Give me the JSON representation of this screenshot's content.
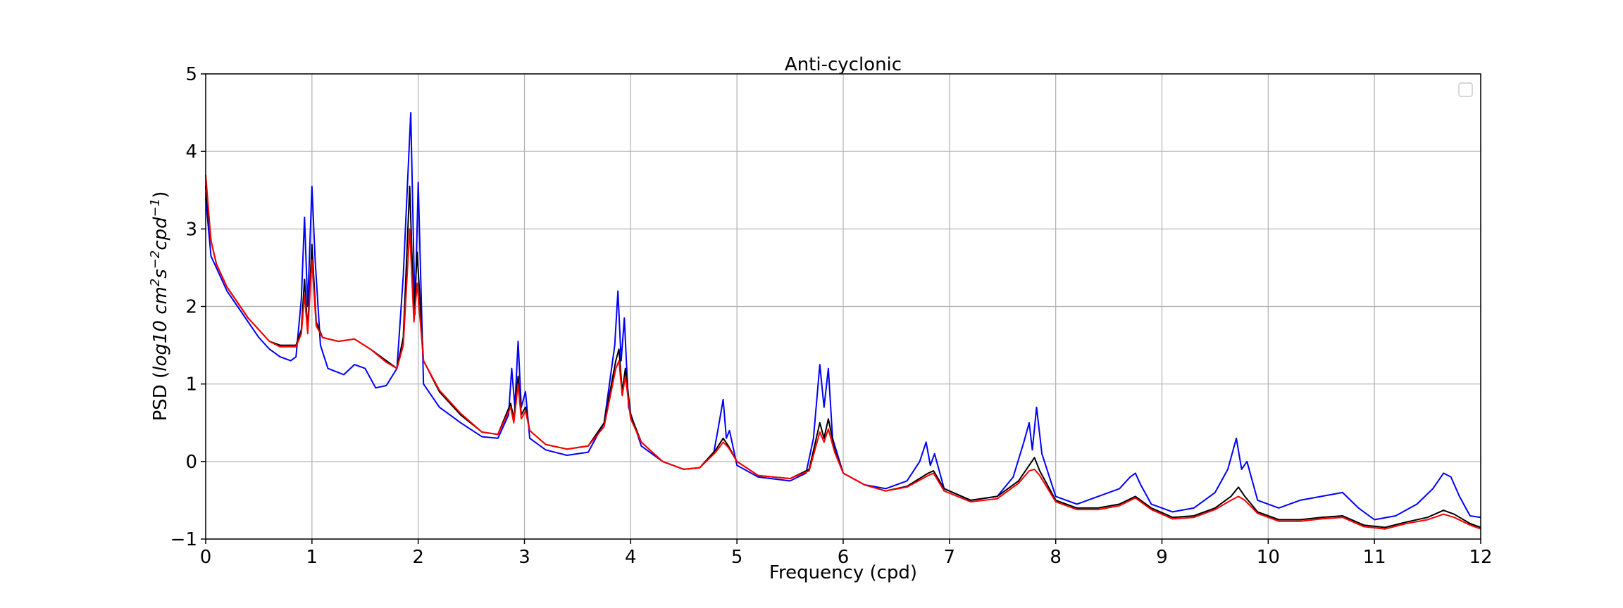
{
  "chart_data": {
    "type": "line",
    "title": "Anti-cyclonic",
    "xlabel": "Frequency (cpd)",
    "ylabel": "PSD (log10 cm^2 s^-2 cpd^-1)",
    "xlim": [
      0,
      12
    ],
    "ylim": [
      -1,
      5
    ],
    "xticks": [
      "0",
      "1",
      "2",
      "3",
      "4",
      "5",
      "6",
      "7",
      "8",
      "9",
      "10",
      "11",
      "12"
    ],
    "yticks": [
      "−1",
      "0",
      "1",
      "2",
      "3",
      "4",
      "5"
    ],
    "grid": true,
    "legend": {
      "placement": "top-right",
      "entries": []
    },
    "series": [
      {
        "color": "#0000ff",
        "points": [
          [
            0.0,
            3.4
          ],
          [
            0.05,
            2.65
          ],
          [
            0.1,
            2.5
          ],
          [
            0.2,
            2.2
          ],
          [
            0.3,
            2.0
          ],
          [
            0.4,
            1.8
          ],
          [
            0.5,
            1.6
          ],
          [
            0.6,
            1.45
          ],
          [
            0.7,
            1.35
          ],
          [
            0.8,
            1.3
          ],
          [
            0.85,
            1.35
          ],
          [
            0.9,
            2.1
          ],
          [
            0.93,
            3.15
          ],
          [
            0.96,
            2.0
          ],
          [
            1.0,
            3.55
          ],
          [
            1.03,
            2.6
          ],
          [
            1.08,
            1.5
          ],
          [
            1.15,
            1.2
          ],
          [
            1.3,
            1.12
          ],
          [
            1.4,
            1.25
          ],
          [
            1.5,
            1.2
          ],
          [
            1.6,
            0.95
          ],
          [
            1.7,
            0.98
          ],
          [
            1.8,
            1.2
          ],
          [
            1.86,
            2.4
          ],
          [
            1.93,
            4.5
          ],
          [
            1.97,
            1.9
          ],
          [
            2.0,
            3.6
          ],
          [
            2.05,
            1.0
          ],
          [
            2.2,
            0.7
          ],
          [
            2.4,
            0.5
          ],
          [
            2.6,
            0.32
          ],
          [
            2.75,
            0.3
          ],
          [
            2.85,
            0.6
          ],
          [
            2.88,
            1.2
          ],
          [
            2.91,
            0.7
          ],
          [
            2.94,
            1.55
          ],
          [
            2.97,
            0.7
          ],
          [
            3.01,
            0.9
          ],
          [
            3.05,
            0.3
          ],
          [
            3.2,
            0.15
          ],
          [
            3.4,
            0.08
          ],
          [
            3.6,
            0.12
          ],
          [
            3.75,
            0.5
          ],
          [
            3.85,
            1.5
          ],
          [
            3.88,
            2.2
          ],
          [
            3.91,
            1.3
          ],
          [
            3.94,
            1.85
          ],
          [
            3.98,
            0.7
          ],
          [
            4.1,
            0.2
          ],
          [
            4.3,
            0.0
          ],
          [
            4.5,
            -0.1
          ],
          [
            4.65,
            -0.08
          ],
          [
            4.78,
            0.1
          ],
          [
            4.82,
            0.4
          ],
          [
            4.87,
            0.8
          ],
          [
            4.9,
            0.3
          ],
          [
            4.93,
            0.4
          ],
          [
            5.0,
            -0.05
          ],
          [
            5.2,
            -0.2
          ],
          [
            5.5,
            -0.25
          ],
          [
            5.65,
            -0.15
          ],
          [
            5.72,
            0.3
          ],
          [
            5.78,
            1.25
          ],
          [
            5.82,
            0.7
          ],
          [
            5.86,
            1.2
          ],
          [
            5.9,
            0.3
          ],
          [
            6.0,
            -0.15
          ],
          [
            6.2,
            -0.3
          ],
          [
            6.4,
            -0.35
          ],
          [
            6.6,
            -0.25
          ],
          [
            6.72,
            0.0
          ],
          [
            6.78,
            0.25
          ],
          [
            6.82,
            -0.05
          ],
          [
            6.86,
            0.1
          ],
          [
            6.95,
            -0.35
          ],
          [
            7.2,
            -0.5
          ],
          [
            7.45,
            -0.45
          ],
          [
            7.6,
            -0.2
          ],
          [
            7.7,
            0.25
          ],
          [
            7.75,
            0.5
          ],
          [
            7.78,
            0.15
          ],
          [
            7.82,
            0.7
          ],
          [
            7.87,
            0.1
          ],
          [
            8.0,
            -0.45
          ],
          [
            8.2,
            -0.55
          ],
          [
            8.4,
            -0.45
          ],
          [
            8.6,
            -0.35
          ],
          [
            8.7,
            -0.2
          ],
          [
            8.75,
            -0.15
          ],
          [
            8.8,
            -0.3
          ],
          [
            8.9,
            -0.55
          ],
          [
            9.1,
            -0.65
          ],
          [
            9.3,
            -0.6
          ],
          [
            9.5,
            -0.4
          ],
          [
            9.62,
            -0.1
          ],
          [
            9.7,
            0.3
          ],
          [
            9.75,
            -0.1
          ],
          [
            9.8,
            0.0
          ],
          [
            9.9,
            -0.5
          ],
          [
            10.1,
            -0.6
          ],
          [
            10.3,
            -0.5
          ],
          [
            10.5,
            -0.45
          ],
          [
            10.7,
            -0.4
          ],
          [
            10.85,
            -0.6
          ],
          [
            11.0,
            -0.75
          ],
          [
            11.2,
            -0.7
          ],
          [
            11.4,
            -0.55
          ],
          [
            11.55,
            -0.35
          ],
          [
            11.65,
            -0.15
          ],
          [
            11.72,
            -0.2
          ],
          [
            11.8,
            -0.45
          ],
          [
            11.9,
            -0.7
          ],
          [
            12.0,
            -0.72
          ]
        ]
      },
      {
        "color": "#000000",
        "points": [
          [
            0.0,
            3.55
          ],
          [
            0.05,
            2.85
          ],
          [
            0.1,
            2.55
          ],
          [
            0.2,
            2.25
          ],
          [
            0.3,
            2.05
          ],
          [
            0.4,
            1.85
          ],
          [
            0.5,
            1.7
          ],
          [
            0.6,
            1.55
          ],
          [
            0.7,
            1.5
          ],
          [
            0.8,
            1.5
          ],
          [
            0.85,
            1.5
          ],
          [
            0.9,
            1.7
          ],
          [
            0.93,
            2.35
          ],
          [
            0.96,
            1.7
          ],
          [
            1.0,
            2.8
          ],
          [
            1.04,
            1.8
          ],
          [
            1.1,
            1.6
          ],
          [
            1.25,
            1.55
          ],
          [
            1.4,
            1.58
          ],
          [
            1.55,
            1.45
          ],
          [
            1.7,
            1.3
          ],
          [
            1.8,
            1.2
          ],
          [
            1.86,
            1.6
          ],
          [
            1.92,
            3.55
          ],
          [
            1.96,
            1.9
          ],
          [
            1.99,
            2.7
          ],
          [
            2.05,
            1.3
          ],
          [
            2.2,
            0.9
          ],
          [
            2.4,
            0.6
          ],
          [
            2.6,
            0.38
          ],
          [
            2.75,
            0.35
          ],
          [
            2.87,
            0.75
          ],
          [
            2.9,
            0.55
          ],
          [
            2.94,
            1.1
          ],
          [
            2.97,
            0.6
          ],
          [
            3.01,
            0.7
          ],
          [
            3.05,
            0.4
          ],
          [
            3.2,
            0.22
          ],
          [
            3.4,
            0.16
          ],
          [
            3.6,
            0.2
          ],
          [
            3.75,
            0.5
          ],
          [
            3.86,
            1.3
          ],
          [
            3.89,
            1.45
          ],
          [
            3.92,
            0.9
          ],
          [
            3.95,
            1.2
          ],
          [
            4.0,
            0.6
          ],
          [
            4.1,
            0.25
          ],
          [
            4.3,
            0.0
          ],
          [
            4.5,
            -0.1
          ],
          [
            4.65,
            -0.08
          ],
          [
            4.8,
            0.15
          ],
          [
            4.87,
            0.3
          ],
          [
            4.92,
            0.2
          ],
          [
            5.0,
            0.0
          ],
          [
            5.2,
            -0.18
          ],
          [
            5.5,
            -0.22
          ],
          [
            5.68,
            -0.1
          ],
          [
            5.78,
            0.5
          ],
          [
            5.82,
            0.3
          ],
          [
            5.86,
            0.55
          ],
          [
            5.92,
            0.15
          ],
          [
            6.0,
            -0.15
          ],
          [
            6.2,
            -0.3
          ],
          [
            6.4,
            -0.38
          ],
          [
            6.6,
            -0.32
          ],
          [
            6.8,
            -0.15
          ],
          [
            6.85,
            -0.12
          ],
          [
            6.95,
            -0.35
          ],
          [
            7.2,
            -0.5
          ],
          [
            7.45,
            -0.45
          ],
          [
            7.65,
            -0.25
          ],
          [
            7.75,
            -0.05
          ],
          [
            7.8,
            0.05
          ],
          [
            7.85,
            -0.12
          ],
          [
            8.0,
            -0.5
          ],
          [
            8.2,
            -0.6
          ],
          [
            8.4,
            -0.6
          ],
          [
            8.6,
            -0.55
          ],
          [
            8.75,
            -0.45
          ],
          [
            8.9,
            -0.6
          ],
          [
            9.1,
            -0.72
          ],
          [
            9.3,
            -0.7
          ],
          [
            9.5,
            -0.6
          ],
          [
            9.65,
            -0.45
          ],
          [
            9.72,
            -0.33
          ],
          [
            9.78,
            -0.45
          ],
          [
            9.9,
            -0.65
          ],
          [
            10.1,
            -0.75
          ],
          [
            10.3,
            -0.75
          ],
          [
            10.5,
            -0.72
          ],
          [
            10.7,
            -0.7
          ],
          [
            10.9,
            -0.82
          ],
          [
            11.1,
            -0.85
          ],
          [
            11.3,
            -0.78
          ],
          [
            11.5,
            -0.72
          ],
          [
            11.65,
            -0.63
          ],
          [
            11.75,
            -0.68
          ],
          [
            11.9,
            -0.8
          ],
          [
            12.0,
            -0.85
          ]
        ]
      },
      {
        "color": "#ff0000",
        "points": [
          [
            0.0,
            3.7
          ],
          [
            0.05,
            2.85
          ],
          [
            0.1,
            2.55
          ],
          [
            0.2,
            2.25
          ],
          [
            0.3,
            2.05
          ],
          [
            0.4,
            1.85
          ],
          [
            0.5,
            1.7
          ],
          [
            0.6,
            1.55
          ],
          [
            0.7,
            1.48
          ],
          [
            0.8,
            1.48
          ],
          [
            0.85,
            1.48
          ],
          [
            0.9,
            1.65
          ],
          [
            0.93,
            2.15
          ],
          [
            0.96,
            1.65
          ],
          [
            1.0,
            2.6
          ],
          [
            1.04,
            1.75
          ],
          [
            1.1,
            1.6
          ],
          [
            1.25,
            1.55
          ],
          [
            1.4,
            1.58
          ],
          [
            1.55,
            1.45
          ],
          [
            1.7,
            1.28
          ],
          [
            1.8,
            1.2
          ],
          [
            1.86,
            1.5
          ],
          [
            1.92,
            3.0
          ],
          [
            1.96,
            1.8
          ],
          [
            1.99,
            2.3
          ],
          [
            2.05,
            1.3
          ],
          [
            2.2,
            0.92
          ],
          [
            2.4,
            0.62
          ],
          [
            2.6,
            0.38
          ],
          [
            2.75,
            0.35
          ],
          [
            2.87,
            0.7
          ],
          [
            2.9,
            0.5
          ],
          [
            2.94,
            1.0
          ],
          [
            2.97,
            0.55
          ],
          [
            3.01,
            0.65
          ],
          [
            3.05,
            0.4
          ],
          [
            3.2,
            0.22
          ],
          [
            3.4,
            0.16
          ],
          [
            3.6,
            0.2
          ],
          [
            3.75,
            0.45
          ],
          [
            3.86,
            1.2
          ],
          [
            3.89,
            1.3
          ],
          [
            3.92,
            0.85
          ],
          [
            3.95,
            1.1
          ],
          [
            4.0,
            0.55
          ],
          [
            4.1,
            0.25
          ],
          [
            4.3,
            0.0
          ],
          [
            4.5,
            -0.1
          ],
          [
            4.65,
            -0.08
          ],
          [
            4.8,
            0.12
          ],
          [
            4.87,
            0.25
          ],
          [
            4.92,
            0.18
          ],
          [
            5.0,
            0.0
          ],
          [
            5.2,
            -0.18
          ],
          [
            5.5,
            -0.22
          ],
          [
            5.68,
            -0.12
          ],
          [
            5.78,
            0.38
          ],
          [
            5.82,
            0.25
          ],
          [
            5.86,
            0.42
          ],
          [
            5.92,
            0.12
          ],
          [
            6.0,
            -0.15
          ],
          [
            6.2,
            -0.3
          ],
          [
            6.4,
            -0.38
          ],
          [
            6.6,
            -0.33
          ],
          [
            6.8,
            -0.18
          ],
          [
            6.85,
            -0.15
          ],
          [
            6.95,
            -0.38
          ],
          [
            7.2,
            -0.52
          ],
          [
            7.45,
            -0.48
          ],
          [
            7.65,
            -0.28
          ],
          [
            7.75,
            -0.12
          ],
          [
            7.8,
            -0.1
          ],
          [
            7.85,
            -0.18
          ],
          [
            8.0,
            -0.52
          ],
          [
            8.2,
            -0.62
          ],
          [
            8.4,
            -0.62
          ],
          [
            8.6,
            -0.57
          ],
          [
            8.75,
            -0.47
          ],
          [
            8.9,
            -0.62
          ],
          [
            9.1,
            -0.74
          ],
          [
            9.3,
            -0.72
          ],
          [
            9.5,
            -0.62
          ],
          [
            9.65,
            -0.5
          ],
          [
            9.72,
            -0.45
          ],
          [
            9.78,
            -0.5
          ],
          [
            9.9,
            -0.67
          ],
          [
            10.1,
            -0.77
          ],
          [
            10.3,
            -0.77
          ],
          [
            10.5,
            -0.74
          ],
          [
            10.7,
            -0.72
          ],
          [
            10.9,
            -0.84
          ],
          [
            11.1,
            -0.87
          ],
          [
            11.3,
            -0.8
          ],
          [
            11.5,
            -0.75
          ],
          [
            11.65,
            -0.68
          ],
          [
            11.75,
            -0.72
          ],
          [
            11.9,
            -0.82
          ],
          [
            12.0,
            -0.87
          ]
        ]
      }
    ]
  }
}
